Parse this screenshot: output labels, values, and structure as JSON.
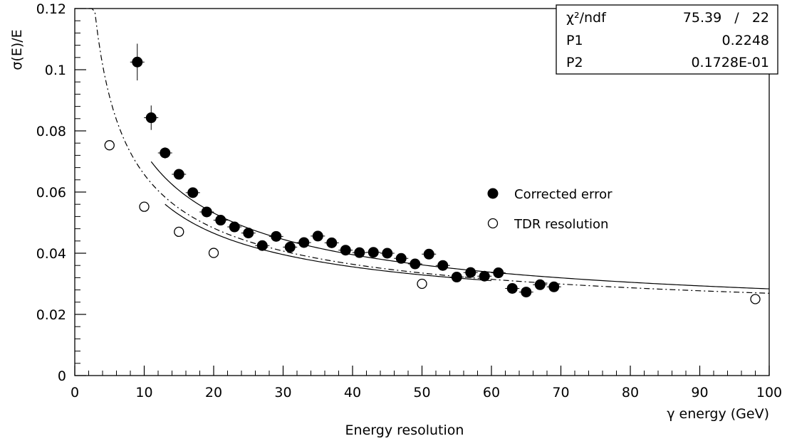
{
  "chart_data": {
    "type": "scatter",
    "title": "Energy resolution",
    "xlabel": "γ energy (GeV)",
    "ylabel": "σ(E)/E",
    "xlim": [
      0,
      100
    ],
    "ylim": [
      0,
      0.12
    ],
    "x_ticks": [
      0,
      10,
      20,
      30,
      40,
      50,
      60,
      70,
      80,
      90,
      100
    ],
    "y_ticks": [
      0,
      0.02,
      0.04,
      0.06,
      0.08,
      0.1,
      0.12
    ],
    "x_tick_labels": [
      "0",
      "10",
      "20",
      "30",
      "40",
      "50",
      "60",
      "70",
      "80",
      "90",
      "100"
    ],
    "y_tick_labels": [
      "0",
      "0.02",
      "0.04",
      "0.06",
      "0.08",
      "0.1",
      "0.12"
    ],
    "grid": false,
    "legend_position": "right-middle",
    "stats": {
      "rows": [
        {
          "label": "χ²/ndf",
          "value": "75.39   /   22"
        },
        {
          "label": "P1",
          "value": "0.2248"
        },
        {
          "label": "P2",
          "value": "0.1728E-01"
        }
      ]
    },
    "series": [
      {
        "name": "Corrected error",
        "marker": "filled-circle",
        "color": "#000000",
        "x": [
          9,
          11,
          13,
          15,
          17,
          19,
          21,
          23,
          25,
          27,
          29,
          31,
          33,
          35,
          37,
          39,
          41,
          43,
          45,
          47,
          49,
          51,
          53,
          55,
          57,
          59,
          61,
          63,
          65,
          67,
          69
        ],
        "y": [
          0.1025,
          0.0843,
          0.0728,
          0.0658,
          0.0598,
          0.0535,
          0.0508,
          0.0486,
          0.0466,
          0.0425,
          0.0455,
          0.042,
          0.0435,
          0.0456,
          0.0434,
          0.041,
          0.0402,
          0.0403,
          0.04,
          0.0383,
          0.0365,
          0.0397,
          0.036,
          0.0322,
          0.0337,
          0.0325,
          0.0336,
          0.0285,
          0.0273,
          0.0297,
          0.029
        ],
        "y_err": [
          0.006,
          0.004,
          0.0018,
          0.0012,
          0.001,
          0.0009,
          0.0008,
          0.0008,
          0.0008,
          0.0007,
          0.0007,
          0.0007,
          0.0007,
          0.0007,
          0.0007,
          0.0007,
          0.0007,
          0.0007,
          0.0007,
          0.0007,
          0.0007,
          0.0007,
          0.0007,
          0.0007,
          0.0007,
          0.0007,
          0.0007,
          0.0007,
          0.0007,
          0.0007,
          0.0007
        ]
      },
      {
        "name": "TDR resolution",
        "marker": "open-circle",
        "color": "#000000",
        "x": [
          5,
          10,
          15,
          20,
          50,
          98
        ],
        "y": [
          0.0753,
          0.0552,
          0.047,
          0.0401,
          0.03,
          0.025
        ]
      }
    ],
    "fit_curves": [
      {
        "style": "solid",
        "x_start": 11,
        "x_end": 100,
        "p1": 0.2248,
        "p2": 0.01728
      },
      {
        "style": "solid",
        "x_start": 13,
        "x_end": 60,
        "p1": 0.19,
        "p2": 0.019
      },
      {
        "style": "dash-dot",
        "x_start": 2,
        "x_end": 100,
        "p1": 0.2,
        "p2": 0.018
      }
    ]
  }
}
